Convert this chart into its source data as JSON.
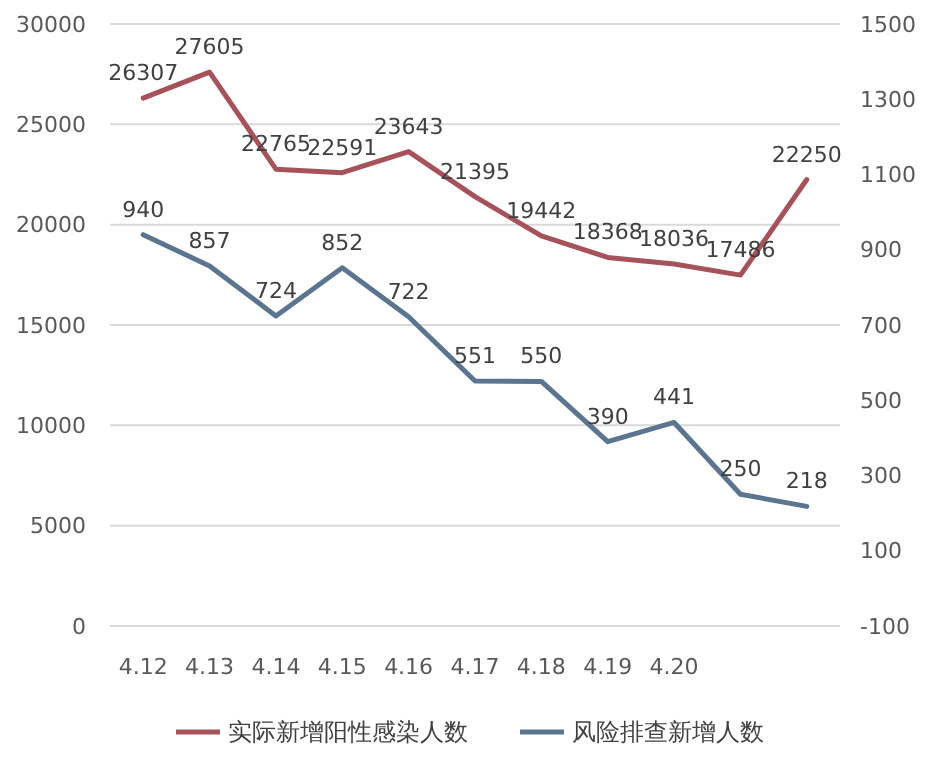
{
  "chart_data": {
    "type": "line",
    "categories": [
      "4.12",
      "4.13",
      "4.14",
      "4.15",
      "4.16",
      "4.17",
      "4.18",
      "4.19",
      "4.20",
      null,
      null
    ],
    "series": [
      {
        "name": "实际新增阳性感染人数",
        "color": "#a6525a",
        "values": [
          26307,
          27605,
          22765,
          22591,
          23643,
          21395,
          19442,
          18368,
          18036,
          17486,
          22250
        ]
      },
      {
        "name": "风险排查新增人数",
        "color": "#5b7591",
        "axis": "y2",
        "values": [
          940,
          857,
          724,
          852,
          722,
          551,
          550,
          390,
          441,
          250,
          218
        ]
      }
    ],
    "ylim": [
      0,
      30000
    ],
    "yticks": [
      0,
      5000,
      10000,
      15000,
      20000,
      25000,
      30000
    ],
    "y2lim": [
      -100,
      1500
    ],
    "y2ticks": [
      -100,
      100,
      300,
      500,
      700,
      900,
      1100,
      1300,
      1500
    ],
    "grid": "y",
    "legend": "bottom",
    "data_labels": true,
    "marker": "none"
  }
}
